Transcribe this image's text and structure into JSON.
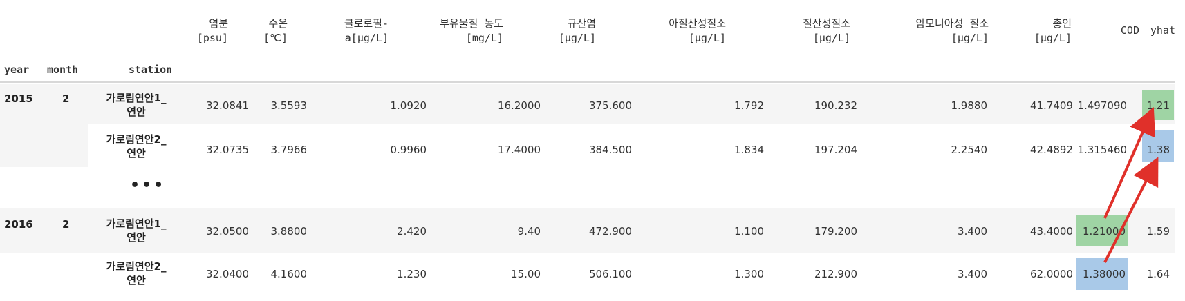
{
  "columns": [
    {
      "key": "salinity",
      "label": "염분\n[psu]"
    },
    {
      "key": "temp",
      "label": "수온\n[℃]"
    },
    {
      "key": "chl",
      "label": "클로로필-\na[μg/L]"
    },
    {
      "key": "ss",
      "label": "부유물질 농도\n[mg/L]"
    },
    {
      "key": "si",
      "label": "규산염\n[μg/L]"
    },
    {
      "key": "no2",
      "label": "아질산성질소\n[μg/L]"
    },
    {
      "key": "no3",
      "label": "질산성질소\n[μg/L]"
    },
    {
      "key": "nh4",
      "label": "암모니아성 질소\n[μg/L]"
    },
    {
      "key": "tp",
      "label": "총인\n[μg/L]"
    },
    {
      "key": "cod",
      "label": "COD"
    },
    {
      "key": "yhat",
      "label": "yhat"
    }
  ],
  "index_headers": {
    "year": "year",
    "month": "month",
    "station": "station"
  },
  "rows": [
    {
      "year": "2015",
      "month": "2",
      "station": "가로림연안1_\n연안",
      "values": [
        "32.0841",
        "3.5593",
        "1.0920",
        "16.2000",
        "375.600",
        "1.792",
        "190.232",
        "1.9880",
        "41.7409",
        "1.497090",
        "1.21"
      ]
    },
    {
      "year": "",
      "month": "",
      "station": "가로림연안2_\n연안",
      "values": [
        "32.0735",
        "3.7966",
        "0.9960",
        "17.4000",
        "384.500",
        "1.834",
        "197.204",
        "2.2540",
        "42.4892",
        "1.315460",
        "1.38"
      ]
    },
    {
      "year": "2016",
      "month": "2",
      "station": "가로림연안1_\n연안",
      "values": [
        "32.0500",
        "3.8800",
        "2.420",
        "9.40",
        "472.900",
        "1.100",
        "179.200",
        "3.400",
        "43.4000",
        "1.21000",
        "1.59"
      ]
    },
    {
      "year": "",
      "month": "",
      "station": "가로림연안2_\n연안",
      "values": [
        "32.0400",
        "4.1600",
        "1.230",
        "15.00",
        "506.100",
        "1.300",
        "212.900",
        "3.400",
        "62.0000",
        "1.38000",
        "1.64"
      ]
    }
  ],
  "ellipsis": "•••",
  "highlight_colors": {
    "green": "#9fd4a4",
    "blue": "#a9c9e8",
    "arrow": "#e0302a"
  }
}
